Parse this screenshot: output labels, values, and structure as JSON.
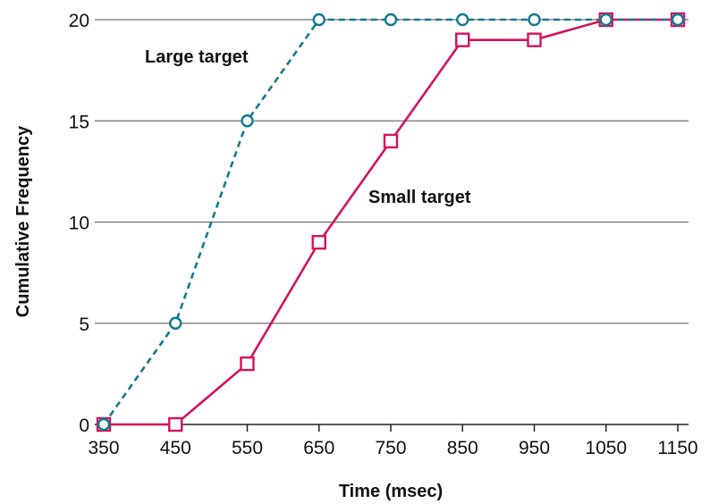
{
  "chart_data": {
    "type": "line",
    "title": "",
    "xlabel": "Time (msec)",
    "ylabel": "Cumulative Frequency",
    "x": [
      350,
      450,
      550,
      650,
      750,
      850,
      950,
      1050,
      1150
    ],
    "xlim": [
      350,
      1150
    ],
    "ylim": [
      0,
      20
    ],
    "yticks": [
      0,
      5,
      10,
      15,
      20
    ],
    "grid": "horizontal",
    "legend": "none",
    "series": [
      {
        "name": "Large target",
        "values": [
          0,
          5,
          15,
          20,
          20,
          20,
          20,
          20,
          20
        ],
        "color": "#137a8f",
        "line_style": "dashed",
        "marker": "circle"
      },
      {
        "name": "Small target",
        "values": [
          0,
          0,
          3,
          9,
          14,
          19,
          19,
          20,
          20
        ],
        "color": "#d4145a",
        "line_style": "solid",
        "marker": "square"
      }
    ]
  }
}
